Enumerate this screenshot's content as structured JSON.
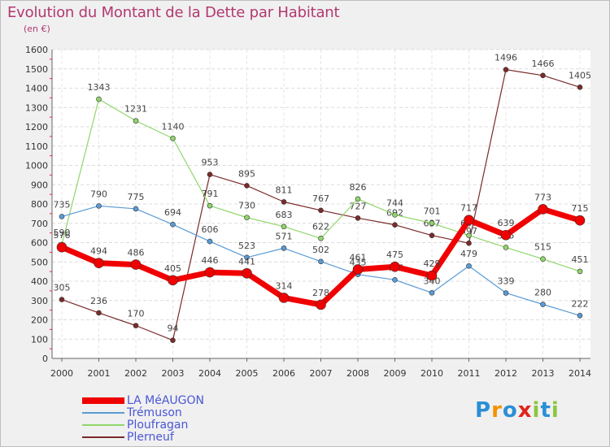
{
  "title": "Evolution du Montant de la Dette par Habitant",
  "subtitle": "(en €)",
  "logo": {
    "text": "Proxiti",
    "letters": [
      "P",
      "r",
      "o",
      "x",
      "i",
      "t",
      "i"
    ],
    "colors": [
      "#2a8fd6",
      "#f39200",
      "#2a8fd6",
      "#e2231a",
      "#8cc63f",
      "#2a8fd6",
      "#8cc63f"
    ]
  },
  "chart_data": {
    "type": "line",
    "title": "Evolution du Montant de la Dette par Habitant",
    "ylabel": "(en €)",
    "xlabel": "",
    "x": [
      "2000",
      "2001",
      "2002",
      "2003",
      "2004",
      "2005",
      "2006",
      "2007",
      "2008",
      "2009",
      "2010",
      "2011",
      "2012",
      "2013",
      "2014"
    ],
    "ylim": [
      0,
      1600
    ],
    "yticks": [
      0,
      100,
      200,
      300,
      400,
      500,
      600,
      700,
      800,
      900,
      1000,
      1100,
      1200,
      1300,
      1400,
      1500,
      1600
    ],
    "grid": true,
    "legend_position": "bottom-left",
    "series": [
      {
        "name": "Plerneuf",
        "color": "#7b2a2a",
        "width": 1.2,
        "marker": 3,
        "labelColor": "#444",
        "values": [
          305,
          236,
          170,
          94,
          953,
          895,
          811,
          767,
          727,
          692,
          637,
          597,
          1496,
          1466,
          1405
        ]
      },
      {
        "name": "Ploufragan",
        "color": "#8fd66a",
        "width": 1.2,
        "marker": 3,
        "labelColor": "#444",
        "values": [
          590,
          1343,
          1231,
          1140,
          791,
          730,
          683,
          622,
          826,
          744,
          701,
          637,
          575,
          515,
          451
        ]
      },
      {
        "name": "Trémuson",
        "color": "#5a9bd5",
        "width": 1.2,
        "marker": 3,
        "labelColor": "#444",
        "values": [
          735,
          790,
          775,
          694,
          606,
          523,
          571,
          502,
          435,
          407,
          340,
          479,
          339,
          280,
          222
        ]
      },
      {
        "name": "LA MéAUGON",
        "color": "#f00000",
        "width": 7,
        "marker": 6,
        "labelColor": "#444",
        "values": [
          576,
          494,
          486,
          405,
          446,
          441,
          314,
          278,
          461,
          475,
          429,
          717,
          639,
          773,
          715
        ]
      }
    ],
    "legend_order": [
      "LA MéAUGON",
      "Trémuson",
      "Ploufragan",
      "Plerneuf"
    ]
  }
}
